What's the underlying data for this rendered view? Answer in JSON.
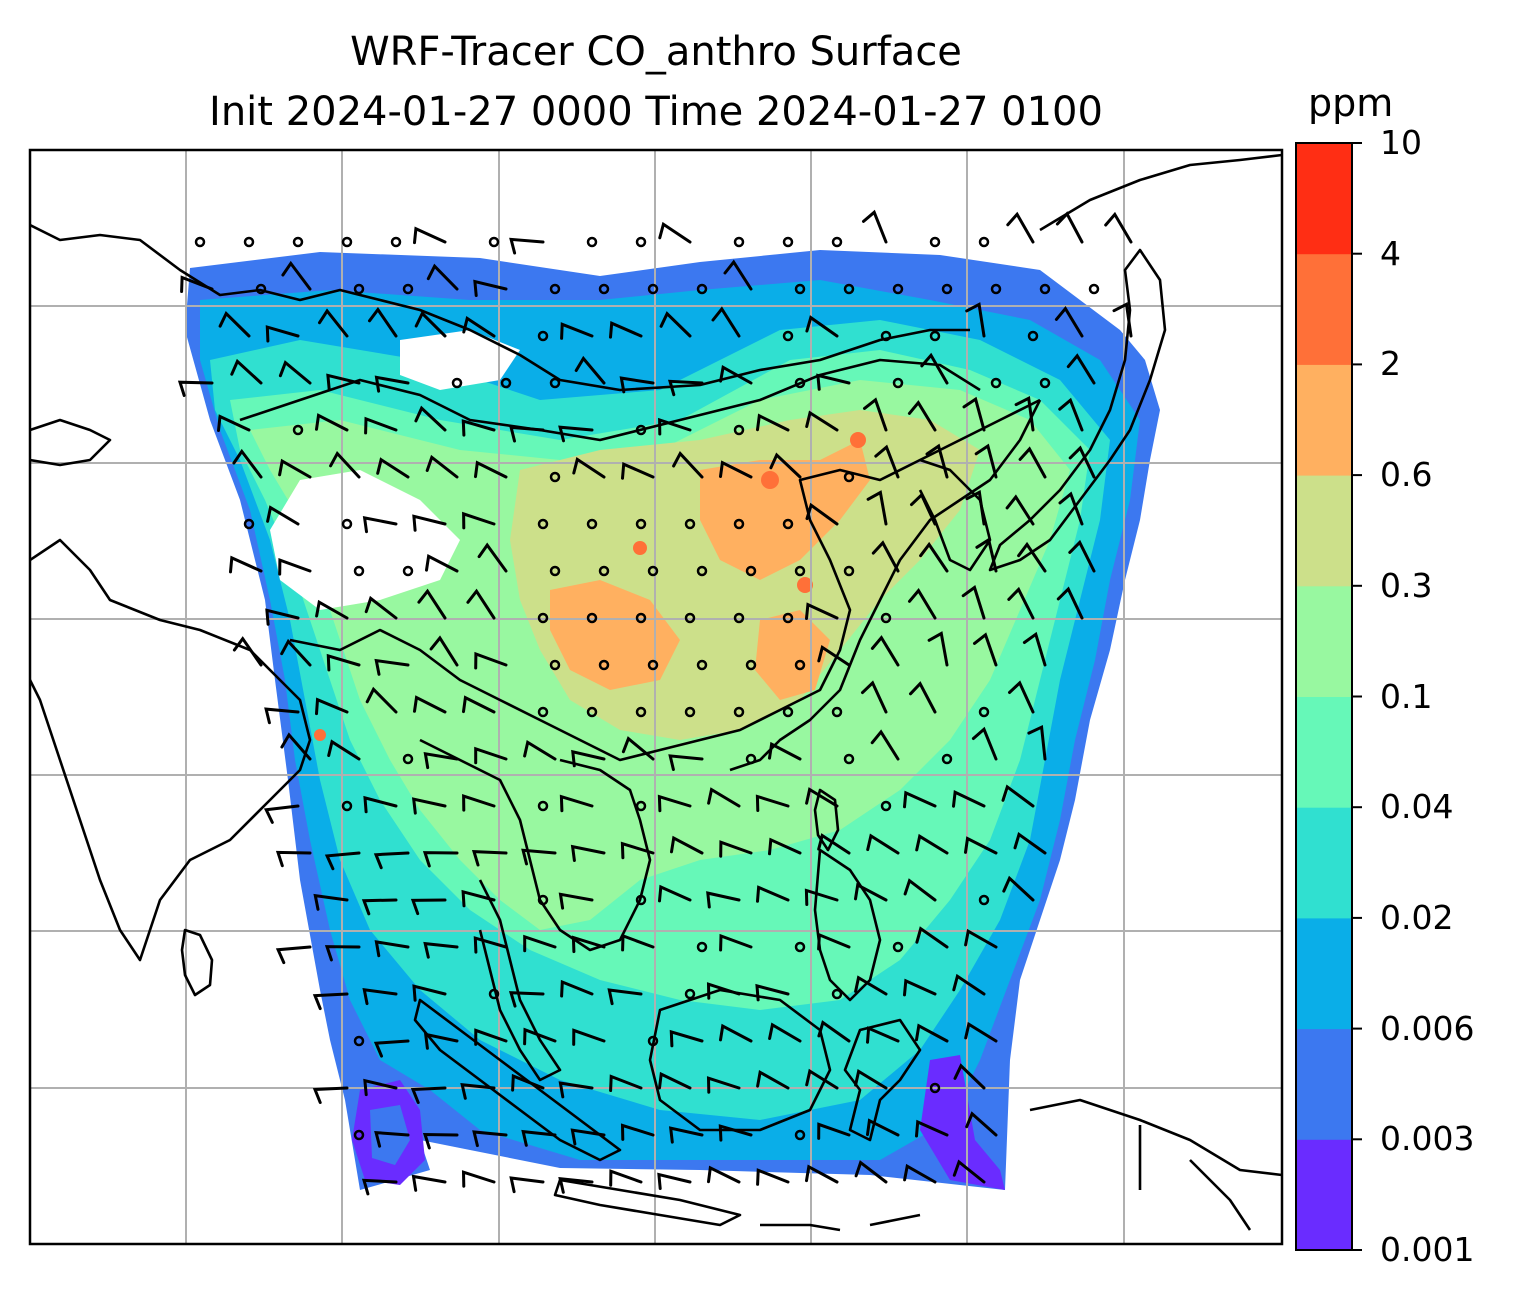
{
  "title_line1": "WRF-Tracer CO_anthro Surface",
  "title_line2": "Init 2024-01-27 0000 Time 2024-01-27 0100",
  "colorbar": {
    "unit": "ppm",
    "tick_labels": [
      "0.001",
      "0.003",
      "0.006",
      "0.02",
      "0.04",
      "0.1",
      "0.3",
      "0.6",
      "2",
      "4",
      "10"
    ],
    "colors": [
      "#6a2cff",
      "#3c78f0",
      "#0aaee8",
      "#30e0d0",
      "#66f8b8",
      "#98f8a0",
      "#cce08a",
      "#ffb060",
      "#ff7038",
      "#ff2e14"
    ]
  },
  "map": {
    "colors": {
      "coast": "#000000",
      "grid": "#b0b0b0",
      "barb": "#000000"
    }
  }
}
